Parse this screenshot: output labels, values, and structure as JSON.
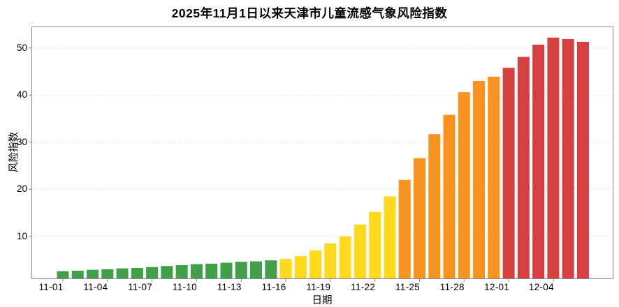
{
  "title": "2025年11月1日以来天津市儿童流感气象风险指数",
  "chart_data": {
    "type": "bar",
    "title": "2025年11月1日以来天津市儿童流感气象风险指数",
    "xlabel": "日期",
    "ylabel": "风险指数",
    "categories": [
      "11-01",
      "11-02",
      "11-03",
      "11-04",
      "11-05",
      "11-06",
      "11-07",
      "11-08",
      "11-09",
      "11-10",
      "11-11",
      "11-12",
      "11-13",
      "11-14",
      "11-15",
      "11-16",
      "11-17",
      "11-18",
      "11-19",
      "11-20",
      "11-21",
      "11-22",
      "11-23",
      "11-24",
      "11-25",
      "11-26",
      "11-27",
      "11-28",
      "11-29",
      "11-30",
      "12-01",
      "12-02",
      "12-03",
      "12-04",
      "12-05",
      "12-06"
    ],
    "values": [
      2.6,
      2.7,
      2.9,
      3.0,
      3.2,
      3.3,
      3.5,
      3.7,
      3.9,
      4.1,
      4.2,
      4.4,
      4.6,
      4.7,
      4.9,
      5.2,
      5.8,
      7.0,
      8.5,
      10.0,
      12.5,
      15.2,
      18.5,
      22.0,
      26.6,
      31.7,
      35.8,
      40.6,
      43.0,
      43.9,
      45.8,
      48.1,
      50.7,
      52.2,
      51.9,
      51.3
    ],
    "levels": [
      "green",
      "green",
      "green",
      "green",
      "green",
      "green",
      "green",
      "green",
      "green",
      "green",
      "green",
      "green",
      "green",
      "green",
      "green",
      "yellow",
      "yellow",
      "yellow",
      "yellow",
      "yellow",
      "yellow",
      "yellow",
      "yellow",
      "orange",
      "orange",
      "orange",
      "orange",
      "orange",
      "orange",
      "orange",
      "red",
      "red",
      "red",
      "red",
      "red",
      "red"
    ],
    "level_colors": {
      "green": "#3FA047",
      "yellow": "#FFD91E",
      "orange": "#F8931F",
      "red": "#D64041"
    },
    "xtick_labels": [
      "11-01",
      "11-04",
      "11-07",
      "11-10",
      "11-13",
      "11-16",
      "11-19",
      "11-22",
      "11-25",
      "11-28",
      "12-01",
      "12-04"
    ],
    "xtick_every": 3,
    "yticks": [
      10,
      20,
      30,
      40,
      50
    ],
    "ylim": [
      1,
      54.6
    ],
    "grid": "horizontal dashed",
    "legend": "none",
    "background": "#ffffff",
    "axis_color": "#888888",
    "grid_color": "#dcdcdc",
    "text_color": "#000000"
  }
}
